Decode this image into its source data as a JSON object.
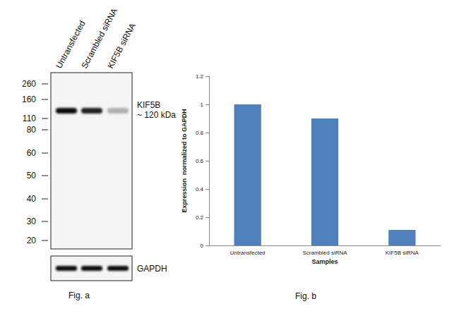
{
  "blot": {
    "caption": "Fig. a",
    "lanes": [
      "Untransfected",
      "Scrambled siRNA",
      "KIF5B siRNA"
    ],
    "markers_kda": [
      260,
      160,
      110,
      80,
      60,
      50,
      40,
      30,
      20
    ],
    "target_label": "KIF5B",
    "target_size": "~ 120 kDa",
    "loading_control": "GAPDH"
  },
  "chart_data": {
    "type": "bar",
    "caption": "Fig. b",
    "categories": [
      "Untransfected",
      "Scrambled siRNA",
      "KIF5B siRNA"
    ],
    "values": [
      1,
      0.9,
      0.11
    ],
    "color": "#4f81bd",
    "ylim": [
      0,
      1.2
    ],
    "yticks": [
      0,
      0.2,
      0.4,
      0.6,
      0.8,
      1,
      1.2
    ],
    "ylabel": "Expression  normalized to GAPDH",
    "xlabel": "Samples",
    "grid": false
  }
}
